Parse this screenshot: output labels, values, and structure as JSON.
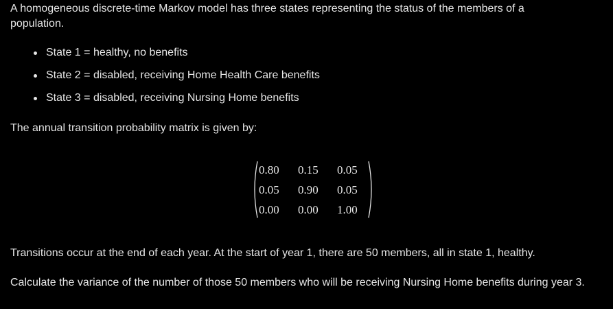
{
  "intro": "A homogeneous discrete-time Markov model has three states representing the status of the members of a population.",
  "states": [
    "State 1 = healthy, no benefits",
    "State 2 = disabled, receiving Home Health Care benefits",
    "State 3 = disabled, receiving Nursing Home benefits"
  ],
  "matrix_intro": "The annual transition probability matrix is given by:",
  "matrix": [
    [
      "0.80",
      "0.15",
      "0.05"
    ],
    [
      "0.05",
      "0.90",
      "0.05"
    ],
    [
      "0.00",
      "0.00",
      "1.00"
    ]
  ],
  "paragraph_transitions": "Transitions occur at the end of each year. At the start of year 1, there are 50 members, all in state 1, healthy.",
  "question": "Calculate the variance of the number of those 50 members who will be receiving Nursing Home benefits during year 3."
}
